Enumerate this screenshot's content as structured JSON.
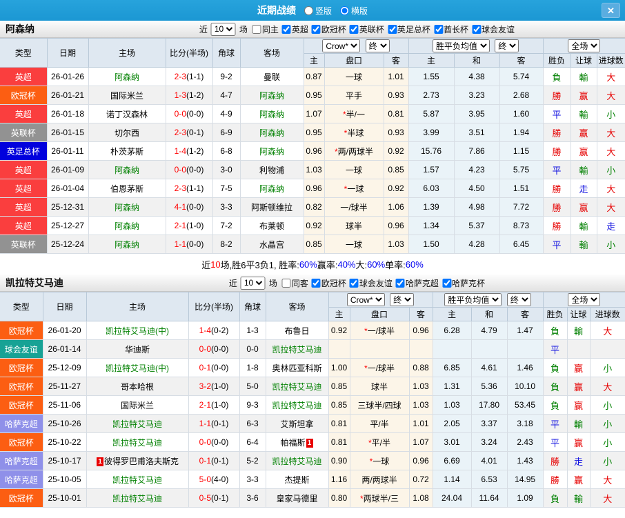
{
  "topbar": {
    "title": "近期战绩",
    "vertical_label": "竖版",
    "horizontal_label": "横版",
    "close_icon": "✕",
    "bar_color": "#1e9cd7"
  },
  "palette": {
    "pl": "#fa3e3e",
    "cl": "#fc5e12",
    "efl": "#929292",
    "fa": "#0101dd",
    "fr": "#17a295",
    "kz": "#8f90e9"
  },
  "result_colors": {
    "r": "#e60000",
    "g": "#008000",
    "b": "#1010e0"
  },
  "table": {
    "col_type": "类型",
    "col_date": "日期",
    "col_home": "主场",
    "col_score": "比分(半场)",
    "col_corner": "角球",
    "col_away": "客场",
    "sub_home": "主",
    "sub_handicap": "盘口",
    "sub_away": "客",
    "sub_avg_home": "主",
    "sub_avg_draw": "和",
    "sub_avg_away": "客",
    "sub_wdl": "胜负",
    "sub_let": "让球",
    "sub_goals": "进球数",
    "sel_crow": "Crow*",
    "sel_final": "终",
    "sel_avg": "胜平负均值",
    "sel_full": "全场"
  },
  "sections": [
    {
      "team": "阿森纳",
      "filters": {
        "recent_label": "近",
        "recent_value": "10",
        "games_label": "场",
        "same_label": "同主",
        "same_checked": false,
        "leagues": [
          "英超",
          "欧冠杯",
          "英联杯",
          "英足总杯",
          "酋长杯",
          "球会友谊"
        ]
      },
      "rows": [
        {
          "league": "英超",
          "lc": "pl",
          "date": "26-01-26",
          "home": {
            "n": "阿森纳",
            "g": true
          },
          "score": "2-3",
          "half": "(1-1)",
          "corner": "9-2",
          "away": {
            "n": "曼联"
          },
          "o1": "0.87",
          "hcap": "一球",
          "o2": "1.01",
          "a1": "1.55",
          "a2": "4.38",
          "a3": "5.74",
          "r1": [
            "負",
            "g"
          ],
          "r2": [
            "輸",
            "g"
          ],
          "r3": [
            "大",
            "r"
          ]
        },
        {
          "league": "欧冠杯",
          "lc": "cl",
          "date": "26-01-21",
          "home": {
            "n": "国际米兰"
          },
          "score": "1-3",
          "half": "(1-2)",
          "corner": "4-7",
          "away": {
            "n": "阿森纳",
            "g": true
          },
          "o1": "0.95",
          "hcap": "平手",
          "o2": "0.93",
          "a1": "2.73",
          "a2": "3.23",
          "a3": "2.68",
          "r1": [
            "勝",
            "r"
          ],
          "r2": [
            "赢",
            "r"
          ],
          "r3": [
            "大",
            "r"
          ]
        },
        {
          "league": "英超",
          "lc": "pl",
          "date": "26-01-18",
          "home": {
            "n": "诺丁汉森林"
          },
          "score": "0-0",
          "half": "(0-0)",
          "corner": "4-9",
          "away": {
            "n": "阿森纳",
            "g": true
          },
          "o1": "1.07",
          "hcap": "*半/一",
          "o2": "0.81",
          "a1": "5.87",
          "a2": "3.95",
          "a3": "1.60",
          "r1": [
            "平",
            "b"
          ],
          "r2": [
            "輸",
            "g"
          ],
          "r3": [
            "小",
            "g"
          ]
        },
        {
          "league": "英联杯",
          "lc": "efl",
          "date": "26-01-15",
          "home": {
            "n": "切尔西"
          },
          "score": "2-3",
          "half": "(0-1)",
          "corner": "6-9",
          "away": {
            "n": "阿森纳",
            "g": true
          },
          "o1": "0.95",
          "hcap": "*半球",
          "o2": "0.93",
          "a1": "3.99",
          "a2": "3.51",
          "a3": "1.94",
          "r1": [
            "勝",
            "r"
          ],
          "r2": [
            "赢",
            "r"
          ],
          "r3": [
            "大",
            "r"
          ]
        },
        {
          "league": "英足总杯",
          "lc": "fa",
          "date": "26-01-11",
          "home": {
            "n": "朴茨茅斯"
          },
          "score": "1-4",
          "half": "(1-2)",
          "corner": "6-8",
          "away": {
            "n": "阿森纳",
            "g": true
          },
          "o1": "0.96",
          "hcap": "*两/两球半",
          "o2": "0.92",
          "a1": "15.76",
          "a2": "7.86",
          "a3": "1.15",
          "r1": [
            "勝",
            "r"
          ],
          "r2": [
            "赢",
            "r"
          ],
          "r3": [
            "大",
            "r"
          ]
        },
        {
          "league": "英超",
          "lc": "pl",
          "date": "26-01-09",
          "home": {
            "n": "阿森纳",
            "g": true
          },
          "score": "0-0",
          "half": "(0-0)",
          "corner": "3-0",
          "away": {
            "n": "利物浦"
          },
          "o1": "1.03",
          "hcap": "一球",
          "o2": "0.85",
          "a1": "1.57",
          "a2": "4.23",
          "a3": "5.75",
          "r1": [
            "平",
            "b"
          ],
          "r2": [
            "輸",
            "g"
          ],
          "r3": [
            "小",
            "g"
          ]
        },
        {
          "league": "英超",
          "lc": "pl",
          "date": "26-01-04",
          "home": {
            "n": "伯恩茅斯"
          },
          "score": "2-3",
          "half": "(1-1)",
          "corner": "7-5",
          "away": {
            "n": "阿森纳",
            "g": true
          },
          "o1": "0.96",
          "hcap": "*一球",
          "o2": "0.92",
          "a1": "6.03",
          "a2": "4.50",
          "a3": "1.51",
          "r1": [
            "勝",
            "r"
          ],
          "r2": [
            "走",
            "b"
          ],
          "r3": [
            "大",
            "r"
          ]
        },
        {
          "league": "英超",
          "lc": "pl",
          "date": "25-12-31",
          "home": {
            "n": "阿森纳",
            "g": true
          },
          "score": "4-1",
          "half": "(0-0)",
          "corner": "3-3",
          "away": {
            "n": "阿斯顿维拉"
          },
          "o1": "0.82",
          "hcap": "一/球半",
          "o2": "1.06",
          "a1": "1.39",
          "a2": "4.98",
          "a3": "7.72",
          "r1": [
            "勝",
            "r"
          ],
          "r2": [
            "赢",
            "r"
          ],
          "r3": [
            "大",
            "r"
          ]
        },
        {
          "league": "英超",
          "lc": "pl",
          "date": "25-12-27",
          "home": {
            "n": "阿森纳",
            "g": true
          },
          "score": "2-1",
          "half": "(1-0)",
          "corner": "7-2",
          "away": {
            "n": "布莱顿"
          },
          "o1": "0.92",
          "hcap": "球半",
          "o2": "0.96",
          "a1": "1.34",
          "a2": "5.37",
          "a3": "8.73",
          "r1": [
            "勝",
            "r"
          ],
          "r2": [
            "輸",
            "g"
          ],
          "r3": [
            "走",
            "b"
          ]
        },
        {
          "league": "英联杯",
          "lc": "efl",
          "date": "25-12-24",
          "home": {
            "n": "阿森纳",
            "g": true
          },
          "score": "1-1",
          "half": "(0-0)",
          "corner": "8-2",
          "away": {
            "n": "水晶宫"
          },
          "o1": "0.85",
          "hcap": "一球",
          "o2": "1.03",
          "a1": "1.50",
          "a2": "4.28",
          "a3": "6.45",
          "r1": [
            "平",
            "b"
          ],
          "r2": [
            "輸",
            "g"
          ],
          "r3": [
            "小",
            "g"
          ]
        }
      ],
      "summary": [
        {
          "t": "近",
          "c": "k"
        },
        {
          "t": "10",
          "c": "r"
        },
        {
          "t": "场,胜6平3负1, 胜率:",
          "c": "k"
        },
        {
          "t": "60%",
          "c": "b"
        },
        {
          "t": " 赢率:",
          "c": "k"
        },
        {
          "t": "40%",
          "c": "b"
        },
        {
          "t": " 大:",
          "c": "k"
        },
        {
          "t": "60%",
          "c": "b"
        },
        {
          "t": " 单率:",
          "c": "k"
        },
        {
          "t": "60%",
          "c": "b"
        }
      ]
    },
    {
      "team": "凯拉特艾马迪",
      "filters": {
        "recent_label": "近",
        "recent_value": "10",
        "games_label": "场",
        "same_label": "同客",
        "same_checked": false,
        "leagues": [
          "欧冠杯",
          "球会友谊",
          "哈萨克超",
          "哈萨克杯"
        ]
      },
      "rows": [
        {
          "league": "欧冠杯",
          "lc": "cl",
          "date": "26-01-20",
          "home": {
            "n": "凯拉特艾马迪(中)",
            "g": true
          },
          "score": "1-4",
          "half": "(0-2)",
          "corner": "1-3",
          "away": {
            "n": "布鲁日"
          },
          "o1": "0.92",
          "hcap": "*一/球半",
          "o2": "0.96",
          "a1": "6.28",
          "a2": "4.79",
          "a3": "1.47",
          "r1": [
            "負",
            "g"
          ],
          "r2": [
            "輸",
            "g"
          ],
          "r3": [
            "大",
            "r"
          ]
        },
        {
          "league": "球会友谊",
          "lc": "fr",
          "date": "26-01-14",
          "home": {
            "n": "华迪斯"
          },
          "score": "0-0",
          "half": "(0-0)",
          "corner": "0-0",
          "away": {
            "n": "凯拉特艾马迪",
            "g": true
          },
          "o1": "",
          "hcap": "",
          "o2": "",
          "a1": "",
          "a2": "",
          "a3": "",
          "r1": [
            "平",
            "b"
          ],
          "r2": [
            "",
            ""
          ],
          "r3": [
            "",
            ""
          ]
        },
        {
          "league": "欧冠杯",
          "lc": "cl",
          "date": "25-12-09",
          "home": {
            "n": "凯拉特艾马迪(中)",
            "g": true
          },
          "score": "0-1",
          "half": "(0-0)",
          "corner": "1-8",
          "away": {
            "n": "奥林匹亚科斯"
          },
          "o1": "1.00",
          "hcap": "*一/球半",
          "o2": "0.88",
          "a1": "6.85",
          "a2": "4.61",
          "a3": "1.46",
          "r1": [
            "負",
            "g"
          ],
          "r2": [
            "赢",
            "r"
          ],
          "r3": [
            "小",
            "g"
          ]
        },
        {
          "league": "欧冠杯",
          "lc": "cl",
          "date": "25-11-27",
          "home": {
            "n": "哥本哈根"
          },
          "score": "3-2",
          "half": "(1-0)",
          "corner": "5-0",
          "away": {
            "n": "凯拉特艾马迪",
            "g": true
          },
          "o1": "0.85",
          "hcap": "球半",
          "o2": "1.03",
          "a1": "1.31",
          "a2": "5.36",
          "a3": "10.10",
          "r1": [
            "負",
            "g"
          ],
          "r2": [
            "赢",
            "r"
          ],
          "r3": [
            "大",
            "r"
          ]
        },
        {
          "league": "欧冠杯",
          "lc": "cl",
          "date": "25-11-06",
          "home": {
            "n": "国际米兰"
          },
          "score": "2-1",
          "half": "(1-0)",
          "corner": "9-3",
          "away": {
            "n": "凯拉特艾马迪",
            "g": true
          },
          "o1": "0.85",
          "hcap": "三球半/四球",
          "o2": "1.03",
          "a1": "1.03",
          "a2": "17.80",
          "a3": "53.45",
          "r1": [
            "負",
            "g"
          ],
          "r2": [
            "赢",
            "r"
          ],
          "r3": [
            "小",
            "g"
          ]
        },
        {
          "league": "哈萨克超",
          "lc": "kz",
          "date": "25-10-26",
          "home": {
            "n": "凯拉特艾马迪",
            "g": true
          },
          "score": "1-1",
          "half": "(0-1)",
          "corner": "6-3",
          "away": {
            "n": "艾斯坦拿"
          },
          "o1": "0.81",
          "hcap": "平/半",
          "o2": "1.01",
          "a1": "2.05",
          "a2": "3.37",
          "a3": "3.18",
          "r1": [
            "平",
            "b"
          ],
          "r2": [
            "輸",
            "g"
          ],
          "r3": [
            "小",
            "g"
          ]
        },
        {
          "league": "欧冠杯",
          "lc": "cl",
          "date": "25-10-22",
          "home": {
            "n": "凯拉特艾马迪",
            "g": true
          },
          "score": "0-0",
          "half": "(0-0)",
          "corner": "6-4",
          "away": {
            "n": "帕福斯",
            "rc": "1",
            "rcpos": "after"
          },
          "o1": "0.81",
          "hcap": "*平/半",
          "o2": "1.07",
          "a1": "3.01",
          "a2": "3.24",
          "a3": "2.43",
          "r1": [
            "平",
            "b"
          ],
          "r2": [
            "赢",
            "r"
          ],
          "r3": [
            "小",
            "g"
          ]
        },
        {
          "league": "哈萨克超",
          "lc": "kz",
          "date": "25-10-17",
          "home": {
            "n": "彼得罗巴甫洛夫斯克",
            "rc": "1",
            "rcpos": "before"
          },
          "score": "0-1",
          "half": "(0-1)",
          "corner": "5-2",
          "away": {
            "n": "凯拉特艾马迪",
            "g": true
          },
          "o1": "0.90",
          "hcap": "*一球",
          "o2": "0.96",
          "a1": "6.69",
          "a2": "4.01",
          "a3": "1.43",
          "r1": [
            "勝",
            "r"
          ],
          "r2": [
            "走",
            "b"
          ],
          "r3": [
            "小",
            "g"
          ]
        },
        {
          "league": "哈萨克超",
          "lc": "kz",
          "date": "25-10-05",
          "home": {
            "n": "凯拉特艾马迪",
            "g": true
          },
          "score": "5-0",
          "half": "(4-0)",
          "corner": "3-3",
          "away": {
            "n": "杰提斯"
          },
          "o1": "1.16",
          "hcap": "两/两球半",
          "o2": "0.72",
          "a1": "1.14",
          "a2": "6.53",
          "a3": "14.95",
          "r1": [
            "勝",
            "r"
          ],
          "r2": [
            "赢",
            "r"
          ],
          "r3": [
            "大",
            "r"
          ]
        },
        {
          "league": "欧冠杯",
          "lc": "cl",
          "date": "25-10-01",
          "home": {
            "n": "凯拉特艾马迪",
            "g": true
          },
          "score": "0-5",
          "half": "(0-1)",
          "corner": "3-6",
          "away": {
            "n": "皇家马德里"
          },
          "o1": "0.80",
          "hcap": "*两球半/三",
          "o2": "1.08",
          "a1": "24.04",
          "a2": "11.64",
          "a3": "1.09",
          "r1": [
            "負",
            "g"
          ],
          "r2": [
            "輸",
            "g"
          ],
          "r3": [
            "大",
            "r"
          ]
        }
      ]
    }
  ]
}
